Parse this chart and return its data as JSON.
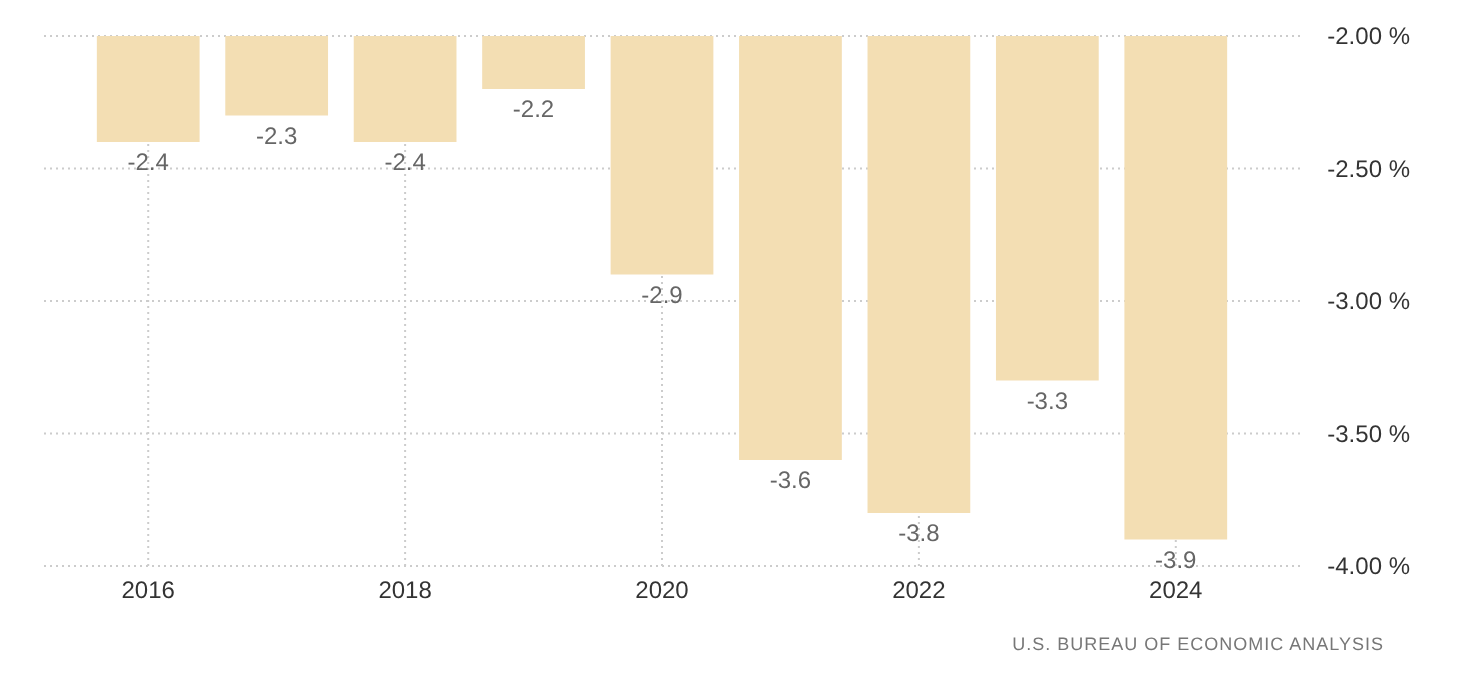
{
  "chart_data": {
    "type": "bar",
    "categories": [
      "2016",
      null,
      "2018",
      null,
      "2020",
      null,
      "2022",
      null,
      "2024"
    ],
    "values": [
      -2.4,
      -2.3,
      -2.4,
      -2.2,
      -2.9,
      -3.6,
      -3.8,
      -3.3,
      -3.9
    ],
    "color": "#f3deb3",
    "ylim": [
      -4.0,
      -2.0
    ],
    "yticks": [
      {
        "value": -2.0,
        "label": "-2.00 %"
      },
      {
        "value": -2.5,
        "label": "-2.50 %"
      },
      {
        "value": -3.0,
        "label": "-3.00 %"
      },
      {
        "value": -3.5,
        "label": "-3.50 %"
      },
      {
        "value": -4.0,
        "label": "-4.00 %"
      }
    ],
    "grid": true,
    "data_labels": true,
    "annotations": [
      "U.S. BUREAU OF ECONOMIC ANALYSIS"
    ]
  }
}
